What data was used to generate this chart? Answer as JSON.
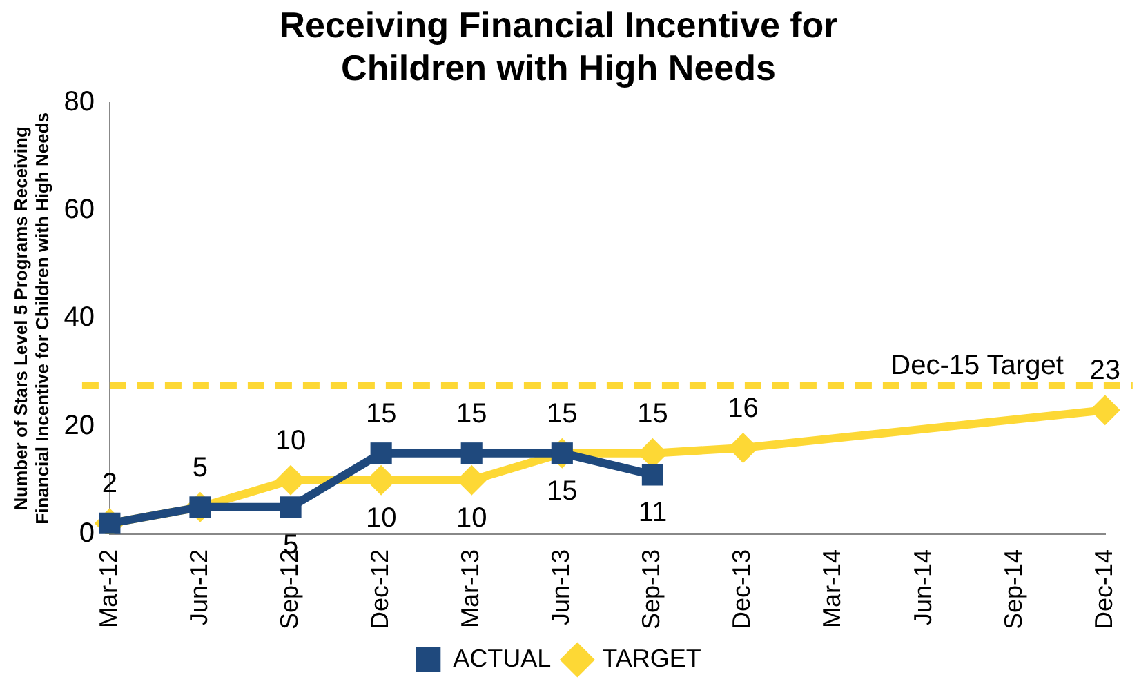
{
  "chart_data": {
    "type": "line",
    "title": [
      "Receiving Financial Incentive for",
      "Children with High Needs"
    ],
    "ylabel": [
      "Number of Stars Level 5 Programs Receiving",
      "Financial Incentive for Children with High Needs"
    ],
    "categories": [
      "Mar-12",
      "Jun-12",
      "Sep-12",
      "Dec-12",
      "Mar-13",
      "Jun-13",
      "Sep-13",
      "Dec-13",
      "Mar-14",
      "Jun-14",
      "Sep-14",
      "Dec-14"
    ],
    "series": [
      {
        "name": "TARGET",
        "color": "#fdd835",
        "marker": "diamond",
        "values": [
          2,
          5,
          10,
          10,
          10,
          15,
          15,
          16,
          null,
          null,
          null,
          23
        ],
        "value_labels": [
          "2",
          "5",
          "10",
          "10",
          "10",
          "15",
          "15",
          "16",
          null,
          null,
          null,
          "23"
        ]
      },
      {
        "name": "ACTUAL",
        "color": "#1f497d",
        "marker": "square",
        "values": [
          2,
          5,
          5,
          15,
          15,
          15,
          11,
          null,
          null,
          null,
          null,
          null
        ],
        "value_labels": [
          null,
          null,
          "5",
          "15",
          "15",
          "15",
          "11",
          null,
          null,
          null,
          null,
          null
        ]
      }
    ],
    "ylim": [
      0,
      80
    ],
    "yticks": [
      0,
      20,
      40,
      60,
      80
    ],
    "grid": false,
    "legend": "bottom",
    "ref_lines": [
      {
        "axis": "y",
        "value": 27.5,
        "label": "Dec-15 Target",
        "color": "#fdd835",
        "line_style": "dashed"
      }
    ]
  }
}
